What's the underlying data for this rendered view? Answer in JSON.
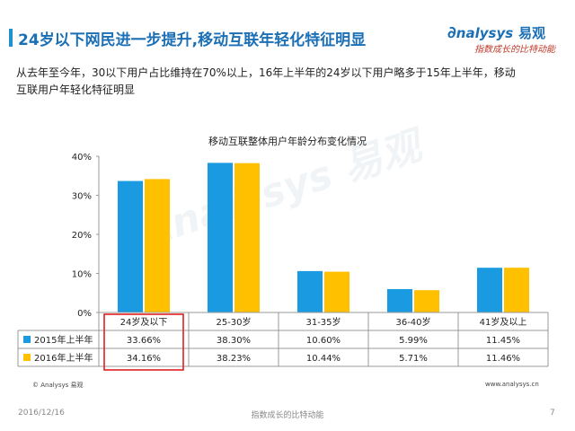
{
  "header": {
    "title": "24岁以下网民进一步提升,移动互联年轻化特征明显"
  },
  "logo": {
    "text": "nalysys",
    "cn": "易观",
    "slogan": "指数成长的比特动能"
  },
  "description": "从去年至今年，30以下用户占比维持在70%以上，16年上半年的24岁以下用户略多于15年上半年，移动互联用户年轻化特征明显",
  "chart_data": {
    "type": "bar",
    "title": "移动互联整体用户年龄分布变化情况",
    "categories": [
      "24岁及以下",
      "25-30岁",
      "31-35岁",
      "36-40岁",
      "41岁及以上"
    ],
    "series": [
      {
        "name": "2015年上半年",
        "values": [
          33.66,
          38.3,
          10.6,
          5.99,
          11.45
        ],
        "labels": [
          "33.66%",
          "38.30%",
          "10.60%",
          "5.99%",
          "11.45%"
        ],
        "color": "#1a9ae0"
      },
      {
        "name": "2016年上半年",
        "values": [
          34.16,
          38.23,
          10.44,
          5.71,
          11.46
        ],
        "labels": [
          "34.16%",
          "38.23%",
          "10.44%",
          "5.71%",
          "11.46%"
        ],
        "color": "#ffc000"
      }
    ],
    "ylim": [
      0,
      40
    ],
    "yticks": [
      0,
      10,
      20,
      30,
      40
    ],
    "ytick_labels": [
      "0%",
      "10%",
      "20%",
      "30%",
      "40%"
    ],
    "highlight_category": 0,
    "highlight_color": "#e02020",
    "legend": "data-table"
  },
  "watermark": "Analysys 易观",
  "footer": {
    "copyright": "© Analysys 易观",
    "website": "www.analysys.cn",
    "date": "2016/12/16",
    "slogan": "指数成长的比特动能",
    "page": "7"
  }
}
